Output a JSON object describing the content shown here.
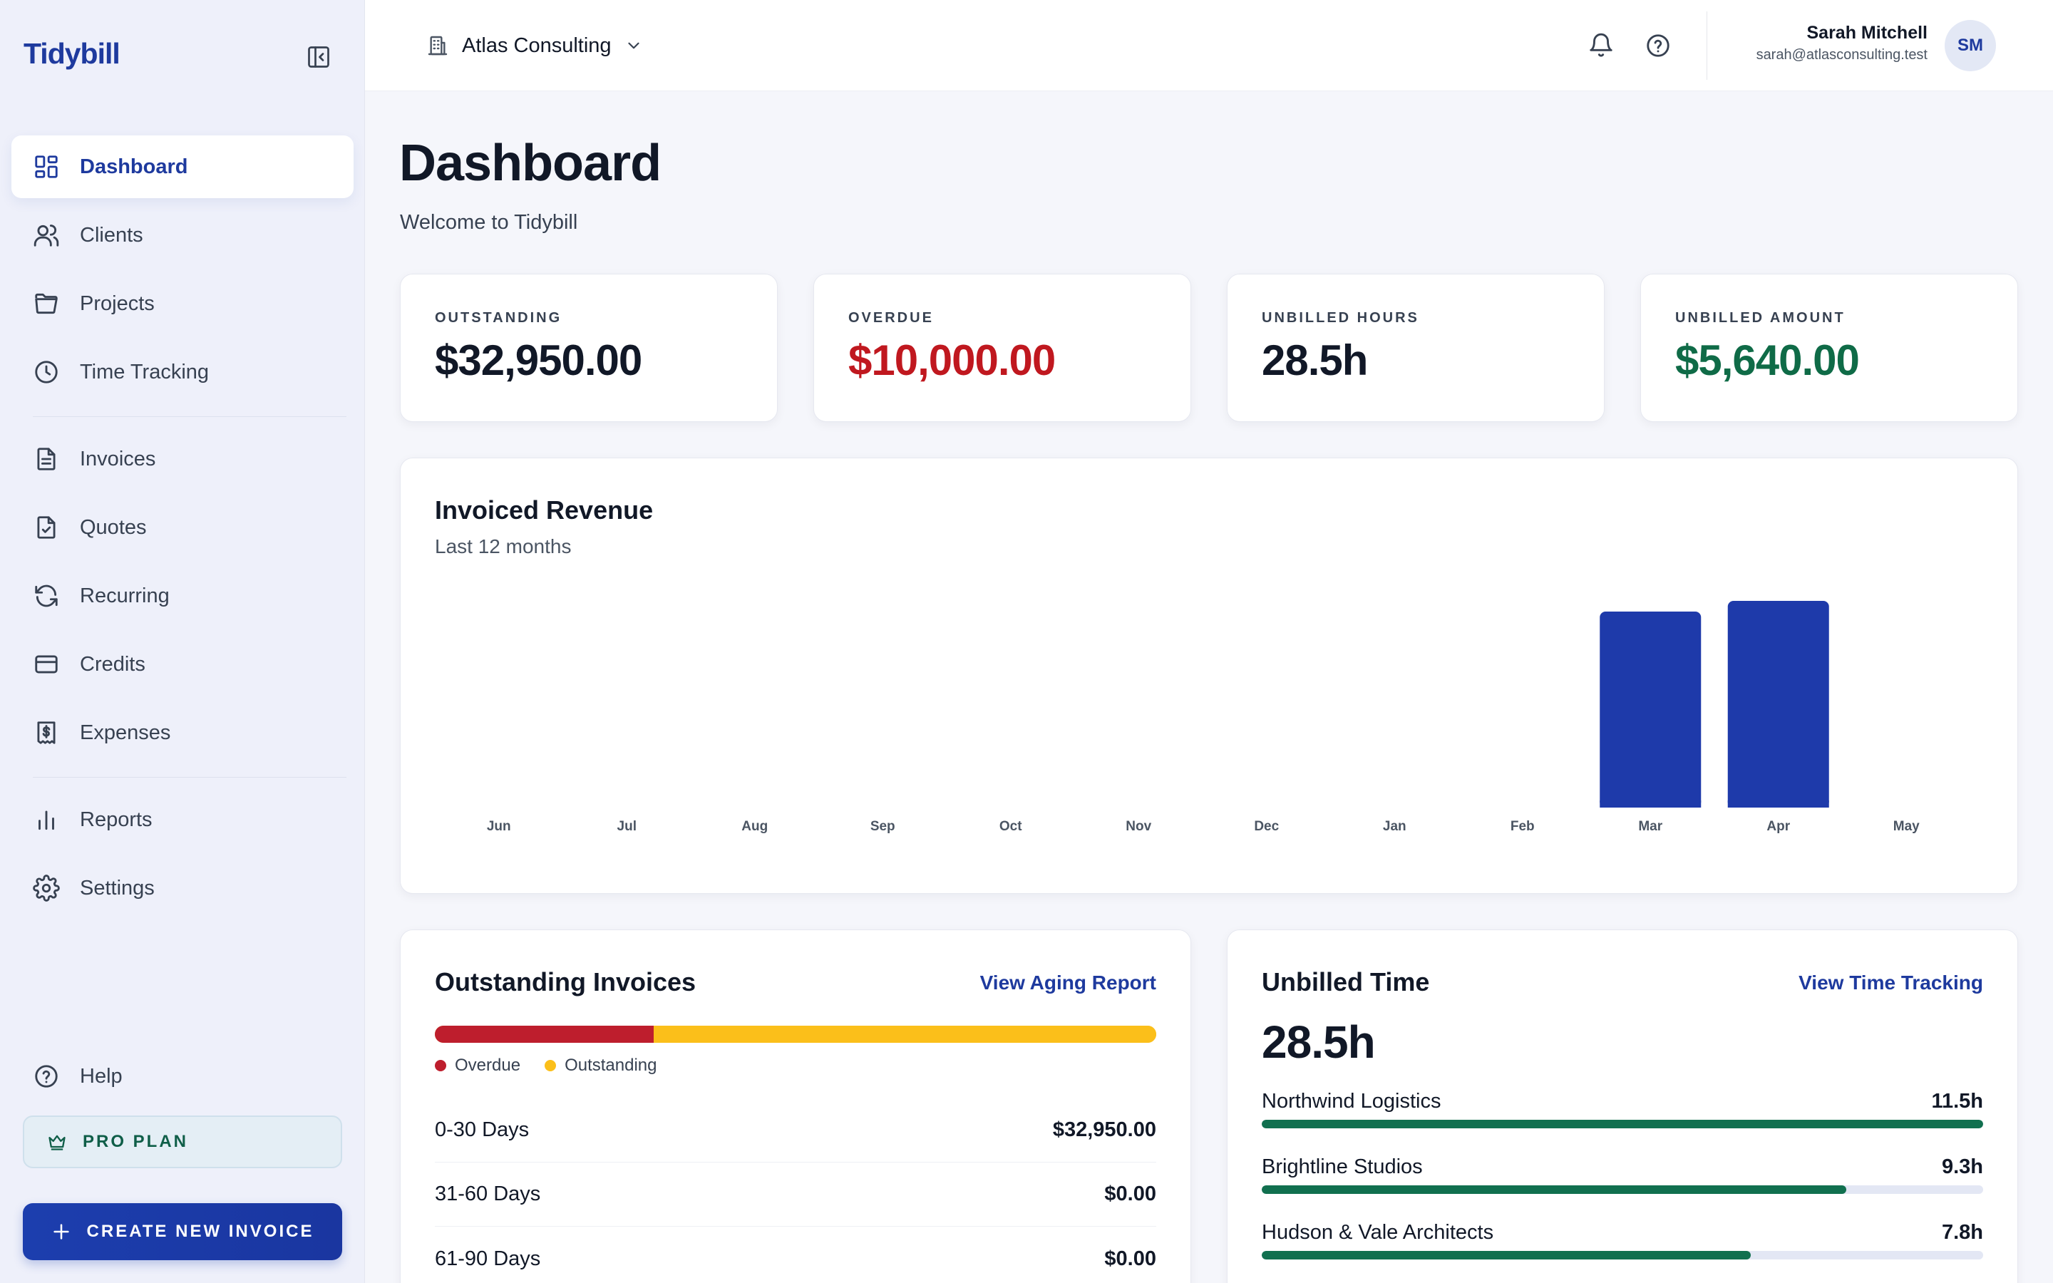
{
  "brand": "Tidybill",
  "nav": {
    "items": [
      {
        "label": "Dashboard",
        "icon": "dashboard-icon",
        "active": true
      },
      {
        "label": "Clients",
        "icon": "users-icon"
      },
      {
        "label": "Projects",
        "icon": "folder-icon"
      },
      {
        "label": "Time Tracking",
        "icon": "clock-icon"
      },
      {
        "label": "Invoices",
        "icon": "document-icon"
      },
      {
        "label": "Quotes",
        "icon": "document-check-icon"
      },
      {
        "label": "Recurring",
        "icon": "refresh-icon"
      },
      {
        "label": "Credits",
        "icon": "credit-card-icon"
      },
      {
        "label": "Expenses",
        "icon": "receipt-icon"
      },
      {
        "label": "Reports",
        "icon": "bar-chart-icon"
      },
      {
        "label": "Settings",
        "icon": "gear-icon"
      }
    ],
    "help": "Help",
    "pro_plan": "PRO PLAN",
    "create_button": "CREATE NEW INVOICE"
  },
  "topbar": {
    "organization": "Atlas Consulting",
    "user_name": "Sarah Mitchell",
    "user_email": "sarah@atlasconsulting.test",
    "avatar_initials": "SM"
  },
  "page": {
    "title": "Dashboard",
    "subtitle": "Welcome to Tidybill"
  },
  "stats": [
    {
      "label": "OUTSTANDING",
      "value": "$32,950.00",
      "color": "#111827"
    },
    {
      "label": "OVERDUE",
      "value": "$10,000.00",
      "color": "#c0181f"
    },
    {
      "label": "UNBILLED HOURS",
      "value": "28.5h",
      "color": "#111827"
    },
    {
      "label": "UNBILLED AMOUNT",
      "value": "$5,640.00",
      "color": "#0f6b47"
    }
  ],
  "revenue": {
    "title": "Invoiced Revenue",
    "subtitle": "Last 12 months"
  },
  "chart_data": {
    "type": "bar",
    "categories": [
      "Jun",
      "Jul",
      "Aug",
      "Sep",
      "Oct",
      "Nov",
      "Dec",
      "Jan",
      "Feb",
      "Mar",
      "Apr",
      "May"
    ],
    "values": [
      0,
      0,
      0,
      0,
      0,
      0,
      0,
      0,
      0,
      27500,
      29000,
      0
    ],
    "bar_color": "#1e3aaa",
    "title": "Invoiced Revenue",
    "subtitle": "Last 12 months",
    "xlabel": "",
    "ylabel": "",
    "ylim": [
      0,
      29000
    ],
    "grid": false
  },
  "outstanding": {
    "title": "Outstanding Invoices",
    "link": "View Aging Report",
    "overdue_share": 0.3035,
    "legend": [
      {
        "label": "Overdue",
        "color": "#be1e2d"
      },
      {
        "label": "Outstanding",
        "color": "#fbbf1a"
      }
    ],
    "rows": [
      {
        "label": "0-30 Days",
        "amount": "$32,950.00"
      },
      {
        "label": "31-60 Days",
        "amount": "$0.00"
      },
      {
        "label": "61-90 Days",
        "amount": "$0.00"
      }
    ]
  },
  "unbilled_time": {
    "title": "Unbilled Time",
    "link": "View Time Tracking",
    "total": "28.5h",
    "rows": [
      {
        "name": "Northwind Logistics",
        "hours": "11.5h",
        "fraction": 1.0
      },
      {
        "name": "Brightline Studios",
        "hours": "9.3h",
        "fraction": 0.81
      },
      {
        "name": "Hudson & Vale Architects",
        "hours": "7.8h",
        "fraction": 0.678
      }
    ]
  }
}
